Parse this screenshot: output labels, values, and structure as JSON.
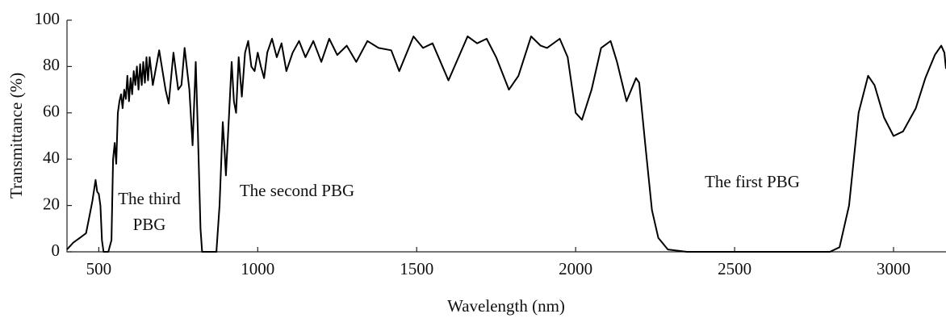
{
  "chart_data": {
    "type": "line",
    "xlabel": "Wavelength (nm)",
    "ylabel": "Transmittance (%)",
    "annotations": [
      "The third",
      "PBG",
      "The second PBG",
      "The first PBG"
    ],
    "color": "#000000",
    "xlim": [
      400,
      3165
    ],
    "ylim": [
      0,
      100
    ],
    "xticks": [
      500,
      1000,
      1500,
      2000,
      2500,
      3000
    ],
    "yticks": [
      0,
      20,
      40,
      60,
      80,
      100
    ],
    "x": [
      400,
      420,
      440,
      460,
      470,
      480,
      490,
      495,
      500,
      505,
      510,
      515,
      530,
      540,
      545,
      550,
      555,
      560,
      565,
      570,
      575,
      580,
      585,
      590,
      595,
      600,
      605,
      610,
      615,
      620,
      625,
      630,
      635,
      640,
      645,
      650,
      655,
      660,
      670,
      690,
      710,
      720,
      735,
      750,
      760,
      770,
      785,
      795,
      805,
      812,
      820,
      825,
      870,
      880,
      890,
      895,
      900,
      910,
      918,
      925,
      932,
      940,
      950,
      960,
      970,
      980,
      990,
      1000,
      1010,
      1020,
      1030,
      1045,
      1060,
      1075,
      1090,
      1110,
      1130,
      1150,
      1175,
      1200,
      1225,
      1250,
      1280,
      1310,
      1345,
      1380,
      1420,
      1445,
      1490,
      1520,
      1550,
      1600,
      1660,
      1690,
      1720,
      1750,
      1790,
      1820,
      1860,
      1890,
      1910,
      1950,
      1975,
      2000,
      2020,
      2050,
      2080,
      2110,
      2130,
      2160,
      2190,
      2200,
      2220,
      2240,
      2260,
      2290,
      2350,
      2800,
      2830,
      2860,
      2890,
      2920,
      2940,
      2970,
      3000,
      3030,
      3070,
      3100,
      3130,
      3150,
      3160,
      3165
    ],
    "values": [
      1,
      4,
      6,
      8,
      15,
      22,
      31,
      26,
      25,
      20,
      5,
      0,
      0,
      5,
      40,
      47,
      38,
      60,
      65,
      68,
      62,
      70,
      66,
      76,
      65,
      75,
      68,
      78,
      72,
      80,
      70,
      81,
      72,
      82,
      73,
      84,
      74,
      84,
      72,
      87,
      70,
      64,
      86,
      70,
      72,
      88,
      70,
      46,
      82,
      50,
      10,
      0,
      0,
      20,
      56,
      45,
      33,
      60,
      82,
      65,
      60,
      84,
      67,
      86,
      91,
      80,
      78,
      86,
      80,
      75,
      86,
      92,
      84,
      90,
      78,
      86,
      91,
      84,
      91,
      82,
      92,
      85,
      89,
      82,
      91,
      88,
      87,
      78,
      93,
      88,
      90,
      74,
      93,
      90,
      92,
      84,
      70,
      76,
      93,
      89,
      88,
      92,
      84,
      60,
      57,
      70,
      88,
      91,
      82,
      65,
      75,
      73,
      45,
      18,
      6,
      1,
      0,
      0,
      2,
      20,
      60,
      76,
      72,
      58,
      50,
      52,
      62,
      75,
      85,
      89,
      86,
      79
    ]
  }
}
